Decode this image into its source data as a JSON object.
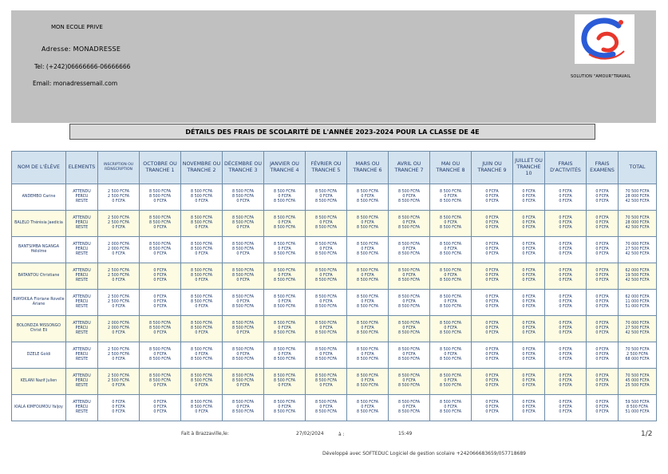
{
  "school": {
    "name": "MON ECOLE PRIVE",
    "address": "Adresse: MONADRESSE",
    "tel": "Tel: (+242)06666666-06666666",
    "email": "Email: monadressemail.com",
    "slogan": "SOLUTION \"AMOUR\"TRAVAIL",
    "logo_colors": [
      "#2a5bd7",
      "#e8372c"
    ]
  },
  "title": "DÉTAILS DES FRAIS DE SCOLARITÉ DE L'ANNÉE 2023-2024 POUR LA CLASSE DE 4E",
  "table": {
    "headers": [
      "NOM DE L'ÉLÈVE",
      "ELEMENTS",
      "INSCRIPTION OU RÉINSCRIPTION",
      "OCTOBRE OU TRANCHE 1",
      "NOVEMBRE OU TRANCHE 2",
      "DÉCEMBRE OU TRANCHE 3",
      "JANVIER OU TRANCHE 4",
      "FÉVRIER OU TRANCHE 5",
      "MARS OU TRANCHE 6",
      "AVRIL OU TRANCHE 7",
      "MAI OU TRANCHE 8",
      "JUIN OU TRANCHE 9",
      "JUILLET OU TRANCHE 10",
      "FRAIS D'ACTIVITÉS",
      "FRAIS EXAMENS",
      "TOTAL"
    ],
    "elements": [
      "ATTENDU",
      "PERCU",
      "RESTE"
    ],
    "rows": [
      {
        "name": "ANDEMBO Carine",
        "cells": [
          [
            "2 500 FCFA",
            "2 500 FCFA",
            "0 FCFA"
          ],
          [
            "8 500 FCFA",
            "8 500 FCFA",
            "0 FCFA"
          ],
          [
            "8 500 FCFA",
            "8 500 FCFA",
            "0 FCFA"
          ],
          [
            "8 500 FCFA",
            "8 500 FCFA",
            "0 FCFA"
          ],
          [
            "8 500 FCFA",
            "0 FCFA",
            "8 500 FCFA"
          ],
          [
            "8 500 FCFA",
            "0 FCFA",
            "8 500 FCFA"
          ],
          [
            "8 500 FCFA",
            "0 FCFA",
            "8 500 FCFA"
          ],
          [
            "8 500 FCFA",
            "0 FCFA",
            "8 500 FCFA"
          ],
          [
            "8 500 FCFA",
            "0 FCFA",
            "8 500 FCFA"
          ],
          [
            "0 FCFA",
            "0 FCFA",
            "0 FCFA"
          ],
          [
            "0 FCFA",
            "0 FCFA",
            "0 FCFA"
          ],
          [
            "0 FCFA",
            "0 FCFA",
            "0 FCFA"
          ],
          [
            "0 FCFA",
            "0 FCFA",
            "0 FCFA"
          ],
          [
            "70 500 FCFA",
            "28 000 FCFA",
            "42 500 FCFA"
          ]
        ]
      },
      {
        "name": "BALELO Thérésia Jaedicia",
        "cells": [
          [
            "2 500 FCFA",
            "2 500 FCFA",
            "0 FCFA"
          ],
          [
            "8 500 FCFA",
            "8 500 FCFA",
            "0 FCFA"
          ],
          [
            "8 500 FCFA",
            "8 500 FCFA",
            "0 FCFA"
          ],
          [
            "8 500 FCFA",
            "8 500 FCFA",
            "0 FCFA"
          ],
          [
            "8 500 FCFA",
            "0 FCFA",
            "8 500 FCFA"
          ],
          [
            "8 500 FCFA",
            "0 FCFA",
            "8 500 FCFA"
          ],
          [
            "8 500 FCFA",
            "0 FCFA",
            "8 500 FCFA"
          ],
          [
            "8 500 FCFA",
            "0 FCFA",
            "8 500 FCFA"
          ],
          [
            "8 500 FCFA",
            "0 FCFA",
            "8 500 FCFA"
          ],
          [
            "0 FCFA",
            "0 FCFA",
            "0 FCFA"
          ],
          [
            "0 FCFA",
            "0 FCFA",
            "0 FCFA"
          ],
          [
            "0 FCFA",
            "0 FCFA",
            "0 FCFA"
          ],
          [
            "0 FCFA",
            "0 FCFA",
            "0 FCFA"
          ],
          [
            "70 500 FCFA",
            "28 000 FCFA",
            "42 500 FCFA"
          ]
        ]
      },
      {
        "name": "BANTSIMBA NGANGA Héloïme",
        "cells": [
          [
            "2 000 FCFA",
            "2 000 FCFA",
            "0 FCFA"
          ],
          [
            "8 500 FCFA",
            "8 500 FCFA",
            "0 FCFA"
          ],
          [
            "8 500 FCFA",
            "8 500 FCFA",
            "0 FCFA"
          ],
          [
            "8 500 FCFA",
            "8 500 FCFA",
            "0 FCFA"
          ],
          [
            "8 500 FCFA",
            "0 FCFA",
            "8 500 FCFA"
          ],
          [
            "8 500 FCFA",
            "0 FCFA",
            "8 500 FCFA"
          ],
          [
            "8 500 FCFA",
            "0 FCFA",
            "8 500 FCFA"
          ],
          [
            "8 500 FCFA",
            "0 FCFA",
            "8 500 FCFA"
          ],
          [
            "8 500 FCFA",
            "0 FCFA",
            "8 500 FCFA"
          ],
          [
            "0 FCFA",
            "0 FCFA",
            "0 FCFA"
          ],
          [
            "0 FCFA",
            "0 FCFA",
            "0 FCFA"
          ],
          [
            "0 FCFA",
            "0 FCFA",
            "0 FCFA"
          ],
          [
            "0 FCFA",
            "0 FCFA",
            "0 FCFA"
          ],
          [
            "70 000 FCFA",
            "27 500 FCFA",
            "42 500 FCFA"
          ]
        ]
      },
      {
        "name": "BATANTOU Christiane",
        "cells": [
          [
            "2 500 FCFA",
            "2 500 FCFA",
            "0 FCFA"
          ],
          [
            "0 FCFA",
            "0 FCFA",
            "0 FCFA"
          ],
          [
            "8 500 FCFA",
            "8 500 FCFA",
            "0 FCFA"
          ],
          [
            "8 500 FCFA",
            "8 500 FCFA",
            "0 FCFA"
          ],
          [
            "8 500 FCFA",
            "0 FCFA",
            "8 500 FCFA"
          ],
          [
            "8 500 FCFA",
            "0 FCFA",
            "8 500 FCFA"
          ],
          [
            "8 500 FCFA",
            "0 FCFA",
            "8 500 FCFA"
          ],
          [
            "8 500 FCFA",
            "0 FCFA",
            "8 500 FCFA"
          ],
          [
            "8 500 FCFA",
            "0 FCFA",
            "8 500 FCFA"
          ],
          [
            "0 FCFA",
            "0 FCFA",
            "0 FCFA"
          ],
          [
            "0 FCFA",
            "0 FCFA",
            "0 FCFA"
          ],
          [
            "0 FCFA",
            "0 FCFA",
            "0 FCFA"
          ],
          [
            "0 FCFA",
            "0 FCFA",
            "0 FCFA"
          ],
          [
            "62 000 FCFA",
            "19 500 FCFA",
            "42 500 FCFA"
          ]
        ]
      },
      {
        "name": "BIAYOKILA Floriane Rovelle Ariane",
        "cells": [
          [
            "2 500 FCFA",
            "2 500 FCFA",
            "0 FCFA"
          ],
          [
            "0 FCFA",
            "0 FCFA",
            "0 FCFA"
          ],
          [
            "8 500 FCFA",
            "8 500 FCFA",
            "0 FCFA"
          ],
          [
            "8 500 FCFA",
            "0 FCFA",
            "8 500 FCFA"
          ],
          [
            "8 500 FCFA",
            "0 FCFA",
            "8 500 FCFA"
          ],
          [
            "8 500 FCFA",
            "0 FCFA",
            "8 500 FCFA"
          ],
          [
            "8 500 FCFA",
            "0 FCFA",
            "8 500 FCFA"
          ],
          [
            "8 500 FCFA",
            "0 FCFA",
            "8 500 FCFA"
          ],
          [
            "8 500 FCFA",
            "0 FCFA",
            "8 500 FCFA"
          ],
          [
            "0 FCFA",
            "0 FCFA",
            "0 FCFA"
          ],
          [
            "0 FCFA",
            "0 FCFA",
            "0 FCFA"
          ],
          [
            "0 FCFA",
            "0 FCFA",
            "0 FCFA"
          ],
          [
            "0 FCFA",
            "0 FCFA",
            "0 FCFA"
          ],
          [
            "62 000 FCFA",
            "11 000 FCFA",
            "51 000 FCFA"
          ]
        ]
      },
      {
        "name": "BOLONDZA MISSONGO Christ Eli",
        "cells": [
          [
            "2 000 FCFA",
            "2 000 FCFA",
            "0 FCFA"
          ],
          [
            "8 500 FCFA",
            "8 500 FCFA",
            "0 FCFA"
          ],
          [
            "8 500 FCFA",
            "8 500 FCFA",
            "0 FCFA"
          ],
          [
            "8 500 FCFA",
            "8 500 FCFA",
            "0 FCFA"
          ],
          [
            "8 500 FCFA",
            "0 FCFA",
            "8 500 FCFA"
          ],
          [
            "8 500 FCFA",
            "0 FCFA",
            "8 500 FCFA"
          ],
          [
            "8 500 FCFA",
            "0 FCFA",
            "8 500 FCFA"
          ],
          [
            "8 500 FCFA",
            "0 FCFA",
            "8 500 FCFA"
          ],
          [
            "8 500 FCFA",
            "0 FCFA",
            "8 500 FCFA"
          ],
          [
            "0 FCFA",
            "0 FCFA",
            "0 FCFA"
          ],
          [
            "0 FCFA",
            "0 FCFA",
            "0 FCFA"
          ],
          [
            "0 FCFA",
            "0 FCFA",
            "0 FCFA"
          ],
          [
            "0 FCFA",
            "0 FCFA",
            "0 FCFA"
          ],
          [
            "70 000 FCFA",
            "27 500 FCFA",
            "42 500 FCFA"
          ]
        ]
      },
      {
        "name": "DZELE Goldi",
        "cells": [
          [
            "2 500 FCFA",
            "2 500 FCFA",
            "0 FCFA"
          ],
          [
            "8 500 FCFA",
            "0 FCFA",
            "8 500 FCFA"
          ],
          [
            "8 500 FCFA",
            "0 FCFA",
            "8 500 FCFA"
          ],
          [
            "8 500 FCFA",
            "0 FCFA",
            "8 500 FCFA"
          ],
          [
            "8 500 FCFA",
            "0 FCFA",
            "8 500 FCFA"
          ],
          [
            "8 500 FCFA",
            "0 FCFA",
            "8 500 FCFA"
          ],
          [
            "8 500 FCFA",
            "0 FCFA",
            "8 500 FCFA"
          ],
          [
            "8 500 FCFA",
            "0 FCFA",
            "8 500 FCFA"
          ],
          [
            "8 500 FCFA",
            "0 FCFA",
            "8 500 FCFA"
          ],
          [
            "0 FCFA",
            "0 FCFA",
            "0 FCFA"
          ],
          [
            "0 FCFA",
            "0 FCFA",
            "0 FCFA"
          ],
          [
            "0 FCFA",
            "0 FCFA",
            "0 FCFA"
          ],
          [
            "0 FCFA",
            "0 FCFA",
            "0 FCFA"
          ],
          [
            "70 500 FCFA",
            "2 500 FCFA",
            "68 000 FCFA"
          ]
        ]
      },
      {
        "name": "KELANI Nazif Julien",
        "cells": [
          [
            "2 500 FCFA",
            "2 500 FCFA",
            "0 FCFA"
          ],
          [
            "8 500 FCFA",
            "8 500 FCFA",
            "0 FCFA"
          ],
          [
            "8 500 FCFA",
            "8 500 FCFA",
            "0 FCFA"
          ],
          [
            "8 500 FCFA",
            "8 500 FCFA",
            "0 FCFA"
          ],
          [
            "8 500 FCFA",
            "8 500 FCFA",
            "0 FCFA"
          ],
          [
            "8 500 FCFA",
            "8 500 FCFA",
            "0 FCFA"
          ],
          [
            "8 500 FCFA",
            "0 FCFA",
            "8 500 FCFA"
          ],
          [
            "8 500 FCFA",
            "0 FCFA",
            "8 500 FCFA"
          ],
          [
            "8 500 FCFA",
            "0 FCFA",
            "8 500 FCFA"
          ],
          [
            "0 FCFA",
            "0 FCFA",
            "0 FCFA"
          ],
          [
            "0 FCFA",
            "0 FCFA",
            "0 FCFA"
          ],
          [
            "0 FCFA",
            "0 FCFA",
            "0 FCFA"
          ],
          [
            "0 FCFA",
            "0 FCFA",
            "0 FCFA"
          ],
          [
            "70 500 FCFA",
            "45 000 FCFA",
            "25 500 FCFA"
          ]
        ]
      },
      {
        "name": "KIALA KIMFOUMOU Yaljoy",
        "cells": [
          [
            "0 FCFA",
            "0 FCFA",
            "0 FCFA"
          ],
          [
            "0 FCFA",
            "0 FCFA",
            "0 FCFA"
          ],
          [
            "8 500 FCFA",
            "8 500 FCFA",
            "0 FCFA"
          ],
          [
            "8 500 FCFA",
            "0 FCFA",
            "8 500 FCFA"
          ],
          [
            "8 500 FCFA",
            "0 FCFA",
            "8 500 FCFA"
          ],
          [
            "8 500 FCFA",
            "0 FCFA",
            "8 500 FCFA"
          ],
          [
            "8 500 FCFA",
            "0 FCFA",
            "8 500 FCFA"
          ],
          [
            "8 500 FCFA",
            "0 FCFA",
            "8 500 FCFA"
          ],
          [
            "8 500 FCFA",
            "0 FCFA",
            "8 500 FCFA"
          ],
          [
            "0 FCFA",
            "0 FCFA",
            "0 FCFA"
          ],
          [
            "0 FCFA",
            "0 FCFA",
            "0 FCFA"
          ],
          [
            "0 FCFA",
            "0 FCFA",
            "0 FCFA"
          ],
          [
            "0 FCFA",
            "0 FCFA",
            "0 FCFA"
          ],
          [
            "59 500 FCFA",
            "8 500 FCFA",
            "51 000 FCFA"
          ]
        ]
      }
    ]
  },
  "footer": {
    "made_at": "Fait à Brazzaville,le:",
    "date": "27/02/2024",
    "a_label": "à :",
    "time": "15:49",
    "page": "1/2",
    "developer": "Développé avec SOFTEDUC Logiciel de gestion scolaire +242066683659/057718689"
  }
}
